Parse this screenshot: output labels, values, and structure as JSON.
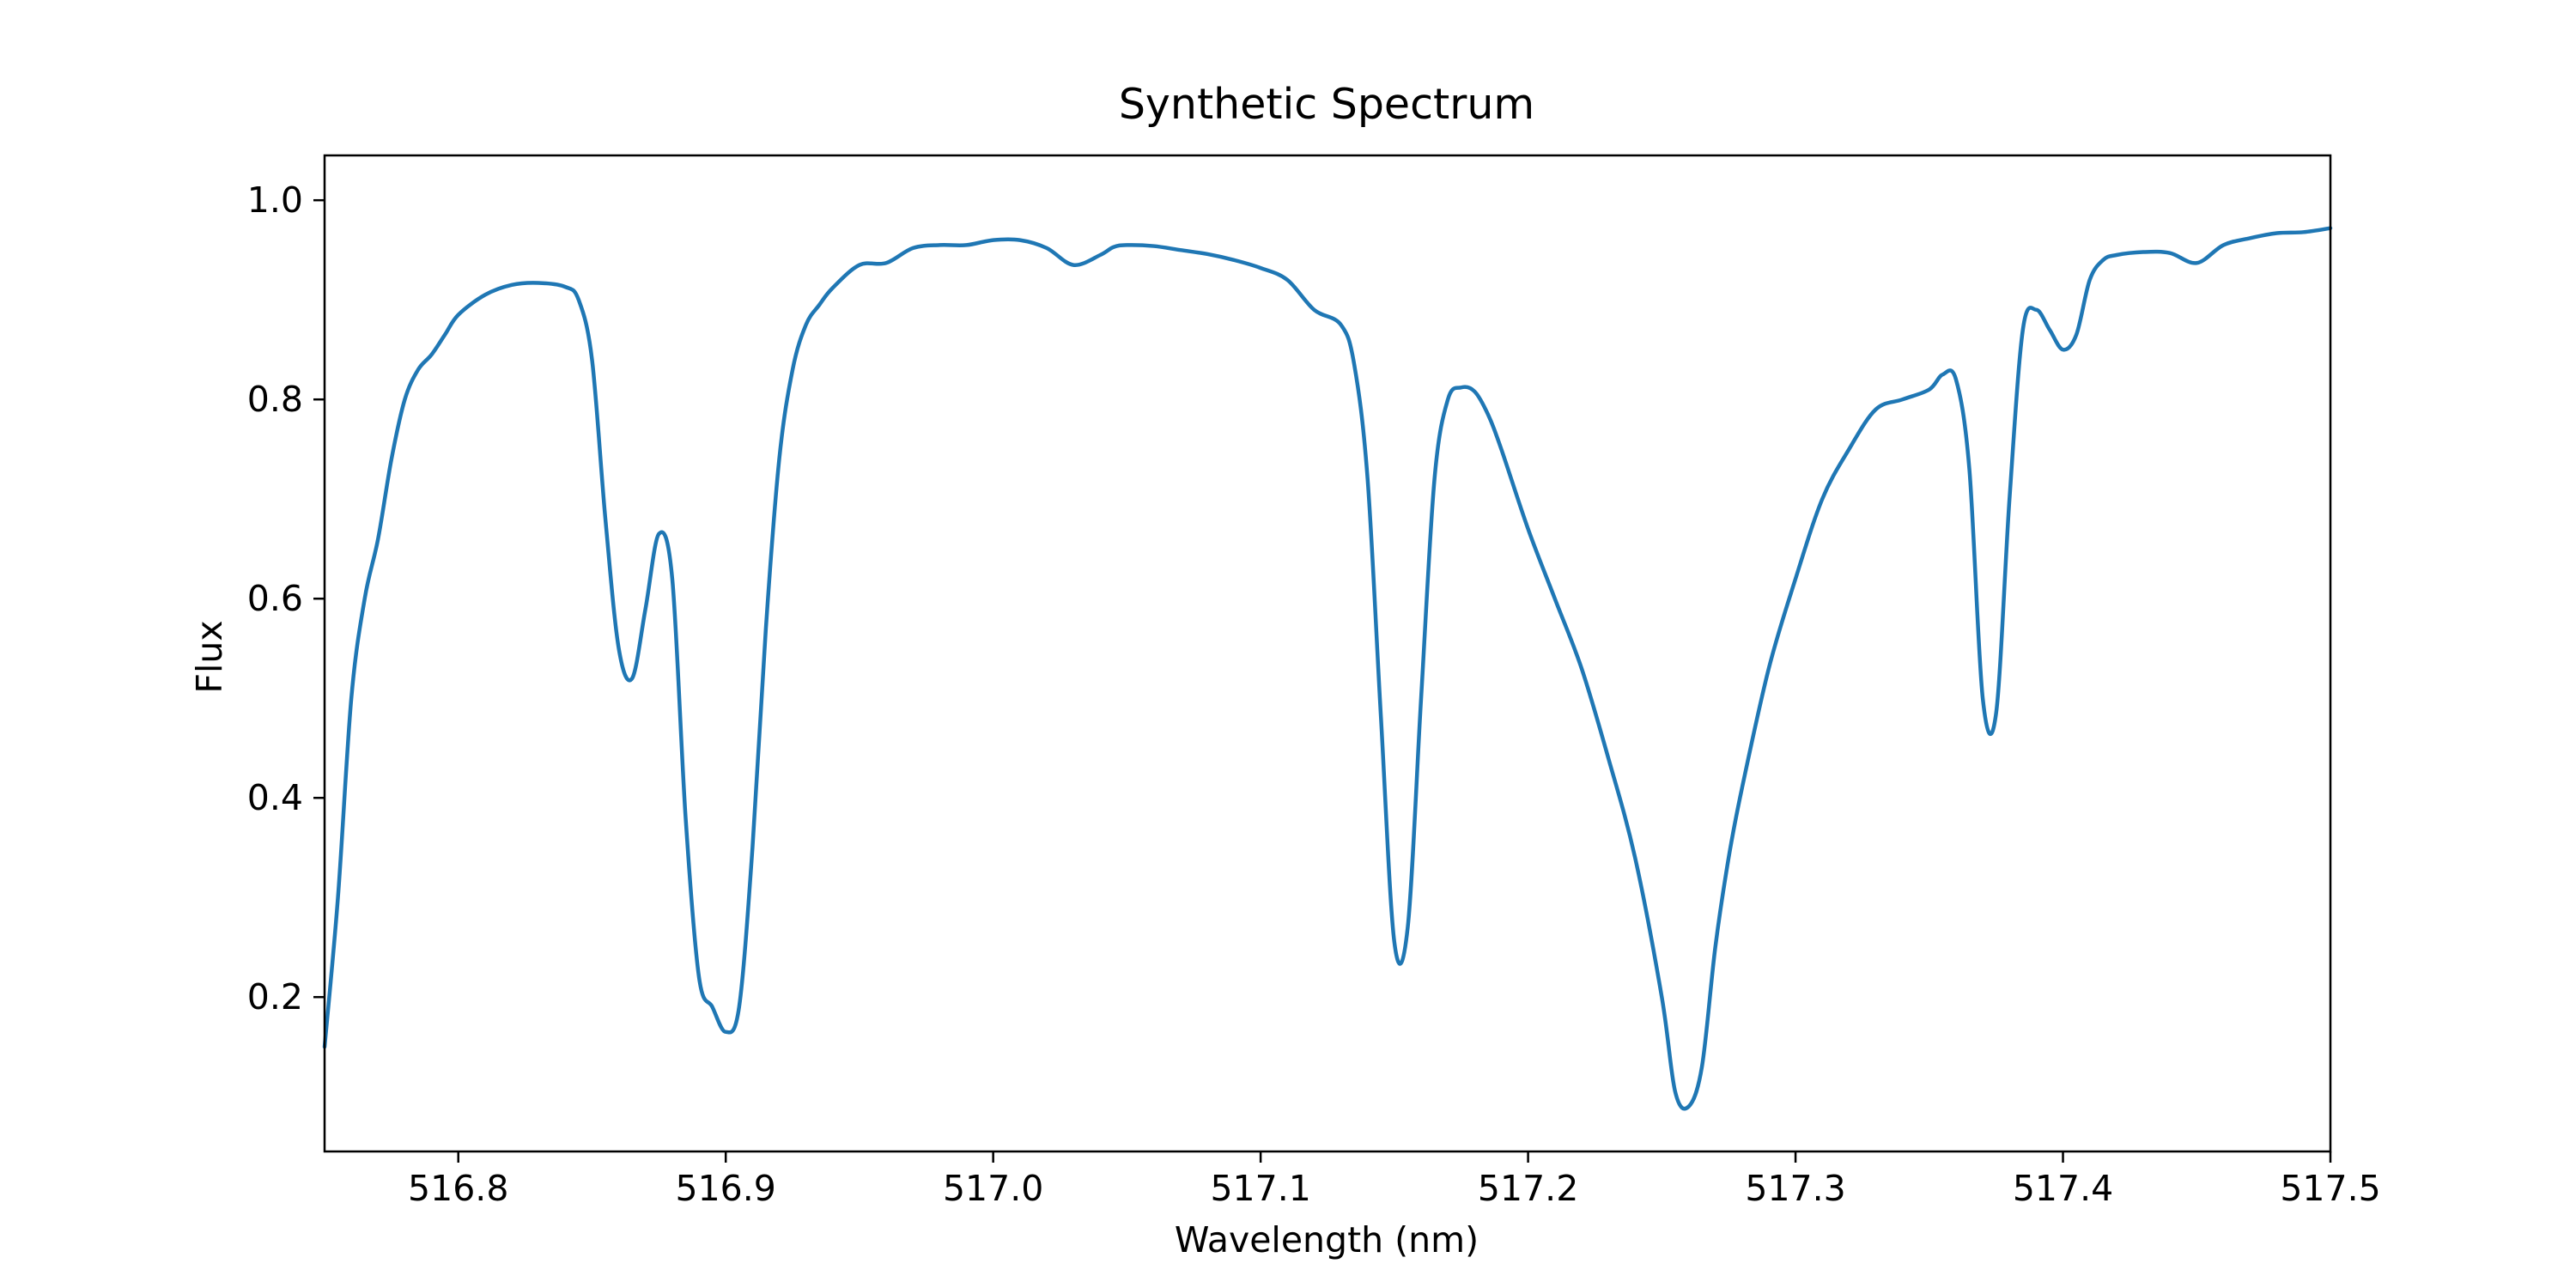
{
  "colors": {
    "line": "#1f77b4",
    "axis": "#000000",
    "background": "#ffffff"
  },
  "chart_data": {
    "type": "line",
    "title": "Synthetic Spectrum",
    "xlabel": "Wavelength (nm)",
    "ylabel": "Flux",
    "xlim": [
      516.75,
      517.5
    ],
    "ylim": [
      0.045,
      1.045
    ],
    "grid": false,
    "x_ticks": [
      516.8,
      516.9,
      517.0,
      517.1,
      517.2,
      517.3,
      517.4,
      517.5
    ],
    "x_tick_labels": [
      "516.8",
      "516.9",
      "517.0",
      "517.1",
      "517.2",
      "517.3",
      "517.4",
      "517.5"
    ],
    "y_ticks": [
      0.2,
      0.4,
      0.6,
      0.8,
      1.0
    ],
    "y_tick_labels": [
      "0.2",
      "0.4",
      "0.6",
      "0.8",
      "1.0"
    ],
    "series": [
      {
        "name": "Flux",
        "x": [
          516.75,
          516.755,
          516.76,
          516.765,
          516.77,
          516.775,
          516.78,
          516.785,
          516.79,
          516.795,
          516.8,
          516.81,
          516.82,
          516.83,
          516.84,
          516.845,
          516.85,
          516.855,
          516.86,
          516.865,
          516.87,
          516.875,
          516.88,
          516.885,
          516.89,
          516.895,
          516.9,
          516.905,
          516.91,
          516.915,
          516.92,
          516.925,
          516.93,
          516.935,
          516.94,
          516.95,
          516.96,
          516.97,
          516.98,
          516.99,
          517.0,
          517.01,
          517.02,
          517.03,
          517.04,
          517.045,
          517.05,
          517.06,
          517.07,
          517.08,
          517.09,
          517.1,
          517.11,
          517.12,
          517.13,
          517.135,
          517.14,
          517.145,
          517.15,
          517.155,
          517.16,
          517.165,
          517.17,
          517.175,
          517.18,
          517.185,
          517.19,
          517.2,
          517.21,
          517.22,
          517.23,
          517.24,
          517.25,
          517.255,
          517.26,
          517.265,
          517.27,
          517.275,
          517.28,
          517.29,
          517.3,
          517.31,
          517.32,
          517.33,
          517.34,
          517.35,
          517.355,
          517.36,
          517.365,
          517.37,
          517.375,
          517.38,
          517.385,
          517.39,
          517.395,
          517.4,
          517.405,
          517.41,
          517.415,
          517.42,
          517.43,
          517.44,
          517.45,
          517.46,
          517.47,
          517.48,
          517.49,
          517.5
        ],
        "y": [
          0.15,
          0.3,
          0.5,
          0.6,
          0.66,
          0.74,
          0.8,
          0.83,
          0.845,
          0.865,
          0.885,
          0.905,
          0.915,
          0.917,
          0.913,
          0.9,
          0.84,
          0.68,
          0.55,
          0.52,
          0.59,
          0.665,
          0.62,
          0.38,
          0.22,
          0.19,
          0.165,
          0.19,
          0.35,
          0.57,
          0.74,
          0.83,
          0.875,
          0.895,
          0.912,
          0.935,
          0.937,
          0.952,
          0.955,
          0.955,
          0.96,
          0.96,
          0.952,
          0.935,
          0.945,
          0.953,
          0.955,
          0.954,
          0.95,
          0.946,
          0.94,
          0.932,
          0.92,
          0.89,
          0.875,
          0.835,
          0.72,
          0.48,
          0.255,
          0.27,
          0.5,
          0.72,
          0.8,
          0.812,
          0.808,
          0.785,
          0.75,
          0.67,
          0.6,
          0.53,
          0.44,
          0.34,
          0.2,
          0.105,
          0.09,
          0.13,
          0.25,
          0.34,
          0.41,
          0.53,
          0.62,
          0.7,
          0.75,
          0.79,
          0.8,
          0.81,
          0.825,
          0.82,
          0.73,
          0.5,
          0.485,
          0.7,
          0.87,
          0.89,
          0.87,
          0.85,
          0.865,
          0.92,
          0.94,
          0.945,
          0.948,
          0.947,
          0.937,
          0.955,
          0.962,
          0.967,
          0.968,
          0.972
        ]
      }
    ]
  }
}
